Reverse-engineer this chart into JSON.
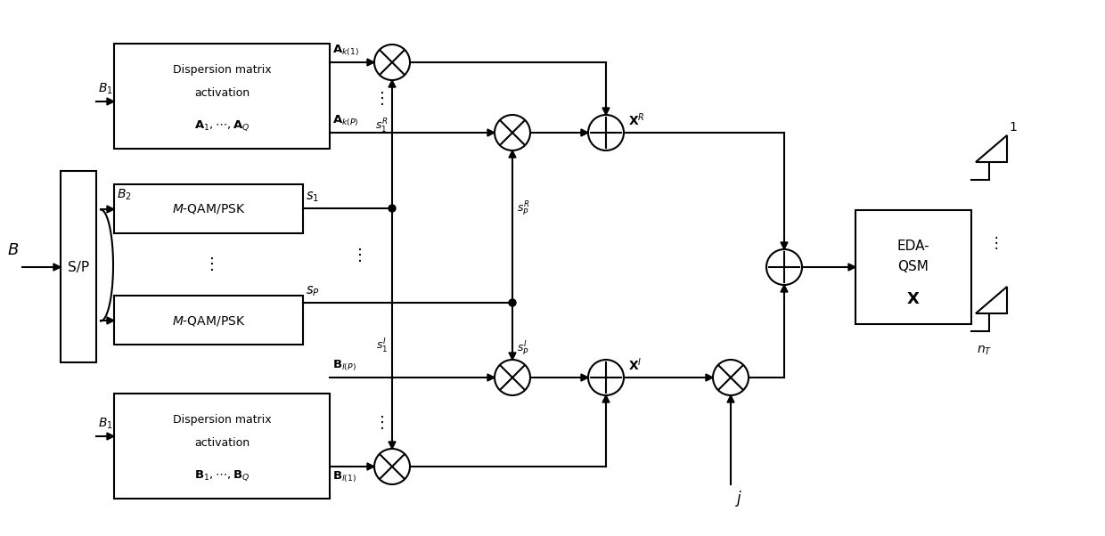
{
  "bg_color": "#ffffff",
  "line_color": "#000000",
  "figsize": [
    12.4,
    6.02
  ],
  "dpi": 100,
  "lw": 1.5,
  "arrow_lw": 1.5,
  "circle_r": 0.38,
  "font_main": 10,
  "font_label": 9,
  "font_small": 8,
  "coords": {
    "xlim": [
      0,
      12.4
    ],
    "ylim": [
      0,
      6.02
    ]
  }
}
